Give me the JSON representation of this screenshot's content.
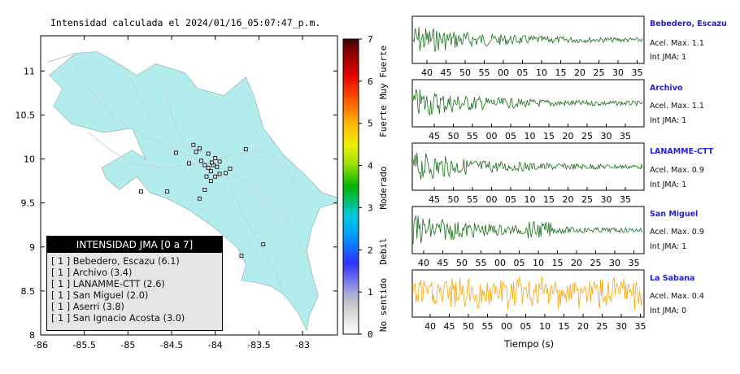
{
  "map": {
    "title": "Intensidad calculada el 2024/01/16_05:07:47_p.m.",
    "xticks": [
      "-86",
      "-85.5",
      "-85",
      "-84.5",
      "-84",
      "-83.5",
      "-83"
    ],
    "yticks": [
      "11",
      "10.5",
      "10",
      "9.5",
      "9",
      "8.5",
      "8"
    ]
  },
  "colorbar": {
    "ticks": [
      "7",
      "6",
      "5",
      "4",
      "3",
      "2",
      "1",
      "0"
    ],
    "labels": [
      "Muy Fuerte",
      "Fuerte",
      "Moderado",
      "Debil",
      "No sentido"
    ]
  },
  "legend": {
    "title": "INTENSIDAD JMA [0 a 7]",
    "items": [
      "[ 1 ]  Bebedero, Escazu (6.1)",
      "[ 1 ]  Archivo (3.4)",
      "[ 1 ]  LANAMME-CTT (2.6)",
      "[ 1 ]  San Miguel (2.0)",
      "[ 1 ]  Aserri (3.8)",
      "[ 1 ]  San Ignacio Acosta (3.0)"
    ]
  },
  "colors": {
    "land": "#b3ecec",
    "trace_green": "#1a6e1a",
    "trace_orange": "#ffa500",
    "station_name": "#1f1fd9"
  },
  "waveforms": {
    "xlabel": "Tiempo (s)",
    "panels": [
      {
        "name": "Bebedero, Escazu",
        "acel": "Acel. Max. 1.1",
        "jma": "Int JMA: 1",
        "ticks": [
          "40",
          "45",
          "50",
          "55",
          "00",
          "05",
          "10",
          "15",
          "20",
          "25",
          "30",
          "35"
        ],
        "color": "green"
      },
      {
        "name": "Archivo",
        "acel": "Acel. Max. 1.1",
        "jma": "Int JMA: 1",
        "ticks": [
          "45",
          "50",
          "55",
          "00",
          "05",
          "10",
          "15",
          "20",
          "25",
          "30",
          "35",
          "40"
        ],
        "color": "green"
      },
      {
        "name": "LANAMME-CTT",
        "acel": "Acel. Max. 0.9",
        "jma": "Int JMA: 1",
        "ticks": [
          "45",
          "50",
          "55",
          "00",
          "05",
          "10",
          "15",
          "20",
          "25",
          "30",
          "35",
          "40"
        ],
        "color": "green"
      },
      {
        "name": "San Miguel",
        "acel": "Acel. Max. 0.9",
        "jma": "Int JMA: 1",
        "ticks": [
          "40",
          "45",
          "50",
          "55",
          "00",
          "05",
          "10",
          "15",
          "20",
          "25",
          "30",
          "35"
        ],
        "color": "green"
      },
      {
        "name": "La Sabana",
        "acel": "Acel. Max. 0.4",
        "jma": "Int JMA: 0",
        "ticks": [
          "40",
          "45",
          "50",
          "55",
          "00",
          "05",
          "10",
          "15",
          "20",
          "25",
          "30",
          "35"
        ],
        "color": "orange"
      }
    ]
  },
  "chart_data": [
    {
      "type": "scatter",
      "title": "Intensidad calculada el 2024/01/16_05:07:47_p.m.",
      "xlabel": "",
      "ylabel": "",
      "xlim": [
        -86,
        -82.6
      ],
      "ylim": [
        8,
        11.4
      ],
      "points": [
        {
          "x": -84.12,
          "y": 9.93
        },
        {
          "x": -84.08,
          "y": 9.9
        },
        {
          "x": -84.05,
          "y": 9.86
        },
        {
          "x": -84.02,
          "y": 9.93
        },
        {
          "x": -84.16,
          "y": 9.98
        },
        {
          "x": -83.98,
          "y": 9.91
        },
        {
          "x": -84.1,
          "y": 9.8
        },
        {
          "x": -84.0,
          "y": 9.8
        },
        {
          "x": -84.22,
          "y": 10.08
        },
        {
          "x": -84.18,
          "y": 10.12
        },
        {
          "x": -83.95,
          "y": 9.83
        },
        {
          "x": -84.3,
          "y": 9.95
        },
        {
          "x": -84.45,
          "y": 10.07
        },
        {
          "x": -84.08,
          "y": 10.06
        },
        {
          "x": -83.95,
          "y": 9.97
        },
        {
          "x": -84.05,
          "y": 9.75
        },
        {
          "x": -83.88,
          "y": 9.84
        },
        {
          "x": -83.83,
          "y": 9.89
        },
        {
          "x": -84.12,
          "y": 9.65
        },
        {
          "x": -84.25,
          "y": 10.16
        },
        {
          "x": -83.65,
          "y": 10.11
        },
        {
          "x": -84.55,
          "y": 9.63
        },
        {
          "x": -84.85,
          "y": 9.63
        },
        {
          "x": -83.45,
          "y": 9.03
        },
        {
          "x": -83.7,
          "y": 8.9
        },
        {
          "x": -84.18,
          "y": 9.55
        },
        {
          "x": -84.0,
          "y": 10.01
        },
        {
          "x": -84.04,
          "y": 9.96
        }
      ]
    },
    {
      "type": "line",
      "xlabel": "Tiempo (s)",
      "series": [
        {
          "name": "Bebedero, Escazu",
          "peak_acceleration": 1.1,
          "jma_intensity": 1
        },
        {
          "name": "Archivo",
          "peak_acceleration": 1.1,
          "jma_intensity": 1
        },
        {
          "name": "LANAMME-CTT",
          "peak_acceleration": 0.9,
          "jma_intensity": 1
        },
        {
          "name": "San Miguel",
          "peak_acceleration": 0.9,
          "jma_intensity": 1
        },
        {
          "name": "La Sabana",
          "peak_acceleration": 0.4,
          "jma_intensity": 0
        }
      ]
    }
  ]
}
